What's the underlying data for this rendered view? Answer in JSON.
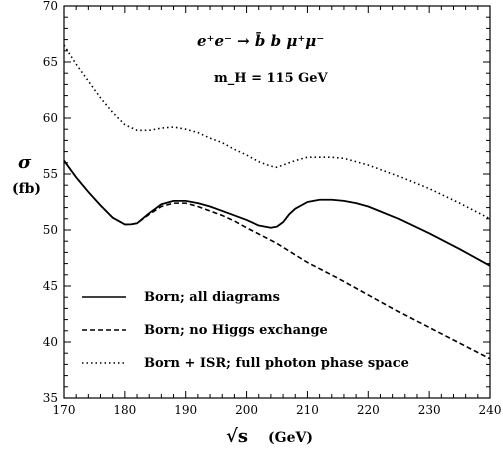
{
  "chart_data": {
    "type": "line",
    "title": "",
    "xlabel": "√s",
    "xunit": "(GeV)",
    "ylabel": "σ",
    "yunit": "(fb)",
    "xlim": [
      170,
      240
    ],
    "ylim": [
      35,
      70
    ],
    "xticks": [
      170,
      180,
      190,
      200,
      210,
      220,
      230,
      240
    ],
    "yticks": [
      35,
      40,
      45,
      50,
      55,
      60,
      65,
      70
    ],
    "grid": false,
    "legend": "bottom-left",
    "annotations": [
      "e⁺e⁻ → b̄ b μ⁺μ⁻",
      "m_H = 115  GeV"
    ],
    "series": [
      {
        "name": "Born; all diagrams",
        "style": "solid",
        "x": [
          170,
          172,
          174,
          176,
          178,
          180,
          181,
          182,
          184,
          186,
          188,
          190,
          192,
          194,
          196,
          198,
          200,
          202,
          204,
          205,
          206,
          207,
          208,
          210,
          212,
          214,
          216,
          218,
          220,
          225,
          230,
          235,
          240
        ],
        "y": [
          56.2,
          54.7,
          53.4,
          52.2,
          51.1,
          50.5,
          50.5,
          50.6,
          51.5,
          52.3,
          52.6,
          52.6,
          52.4,
          52.1,
          51.7,
          51.3,
          50.9,
          50.4,
          50.2,
          50.3,
          50.7,
          51.4,
          51.9,
          52.5,
          52.7,
          52.7,
          52.6,
          52.4,
          52.1,
          51.0,
          49.7,
          48.3,
          46.8
        ]
      },
      {
        "name": "Born; no Higgs exchange",
        "style": "dashed",
        "x": [
          170,
          172,
          174,
          176,
          178,
          180,
          181,
          182,
          184,
          186,
          188,
          190,
          192,
          194,
          196,
          198,
          200,
          205,
          210,
          215,
          220,
          225,
          230,
          235,
          240
        ],
        "y": [
          56.2,
          54.7,
          53.4,
          52.2,
          51.1,
          50.5,
          50.5,
          50.6,
          51.4,
          52.1,
          52.4,
          52.4,
          52.1,
          51.7,
          51.3,
          50.8,
          50.2,
          48.8,
          47.1,
          45.7,
          44.2,
          42.7,
          41.3,
          39.9,
          38.5
        ]
      },
      {
        "name": "Born + ISR; full photon phase space",
        "style": "dotted",
        "x": [
          170,
          172,
          174,
          176,
          178,
          180,
          182,
          184,
          186,
          188,
          190,
          192,
          194,
          196,
          198,
          200,
          202,
          204,
          205,
          206,
          208,
          210,
          212,
          214,
          216,
          218,
          220,
          225,
          230,
          235,
          240
        ],
        "y": [
          66.5,
          64.8,
          63.3,
          61.8,
          60.5,
          59.4,
          58.9,
          58.9,
          59.1,
          59.2,
          59.0,
          58.7,
          58.2,
          57.8,
          57.2,
          56.7,
          56.1,
          55.7,
          55.6,
          55.8,
          56.2,
          56.5,
          56.5,
          56.5,
          56.4,
          56.1,
          55.8,
          54.8,
          53.7,
          52.4,
          51.0
        ]
      }
    ]
  }
}
